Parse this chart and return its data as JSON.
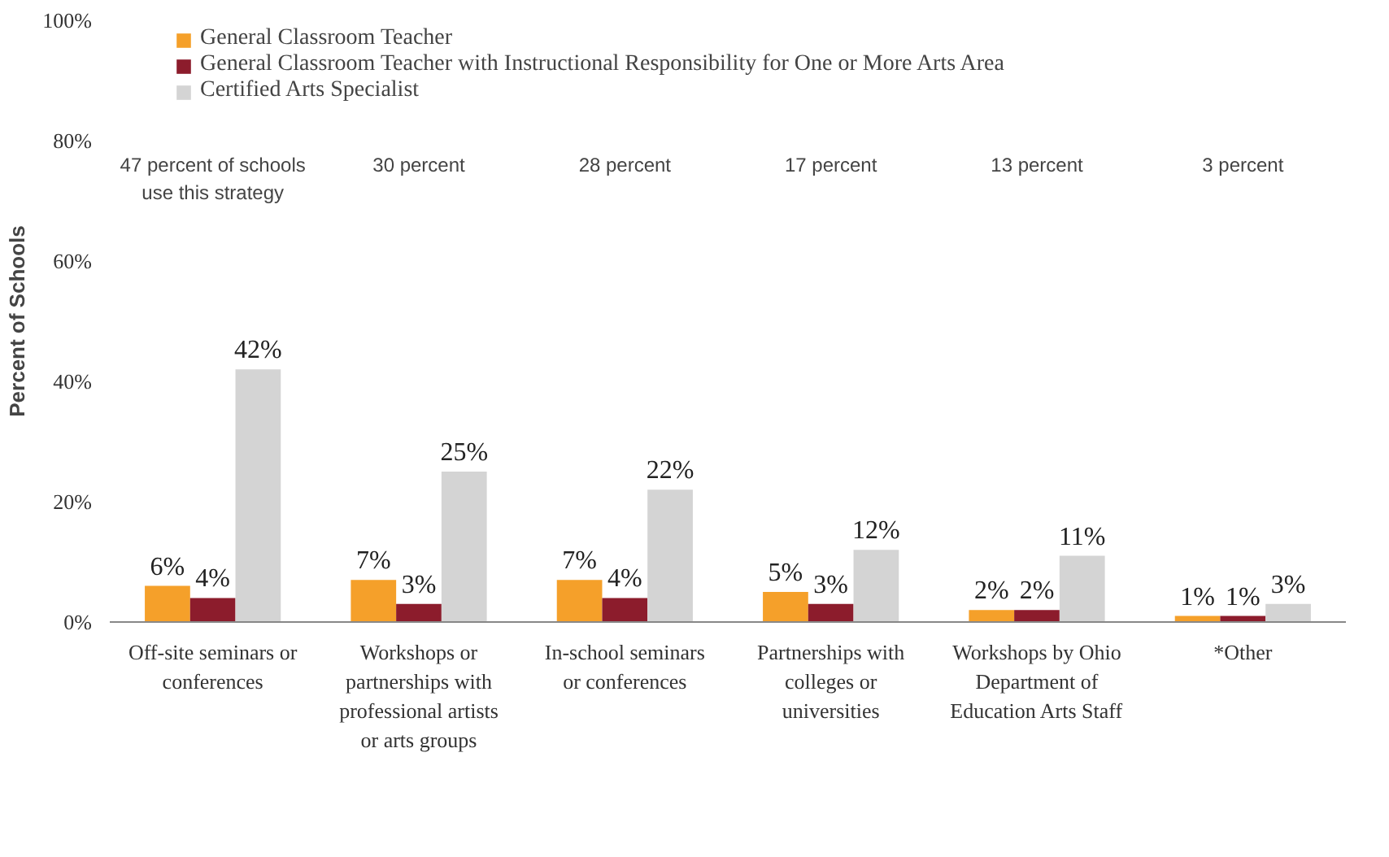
{
  "chart_data": {
    "type": "bar",
    "ylabel": "Percent of Schools",
    "categories": [
      "Off-site seminars or conferences",
      "Workshops or partnerships with professional artists or arts groups",
      "In-school seminars or conferences",
      "Partnerships with colleges or universities",
      "Workshops by Ohio Department of Education Arts Staff",
      "*Other"
    ],
    "series": [
      {
        "name": "General Classroom Teacher",
        "color": "#f5a02a",
        "values": [
          6,
          7,
          7,
          5,
          2,
          1
        ],
        "value_labels": [
          "6%",
          "7%",
          "7%",
          "5%",
          "2%",
          "1%"
        ]
      },
      {
        "name": "General Classroom Teacher with Instructional Responsibility for One or More Arts Area",
        "color": "#8c1c2c",
        "values": [
          4,
          3,
          4,
          3,
          2,
          1
        ],
        "value_labels": [
          "4%",
          "3%",
          "4%",
          "3%",
          "2%",
          "1%"
        ]
      },
      {
        "name": "Certified Arts Specialist",
        "color": "#d4d4d4",
        "values": [
          42,
          25,
          22,
          12,
          11,
          3
        ],
        "value_labels": [
          "42%",
          "25%",
          "22%",
          "12%",
          "11%",
          "3%"
        ]
      }
    ],
    "ylim": [
      0,
      100
    ],
    "yticks": [
      {
        "value": 0,
        "label": "0%"
      },
      {
        "value": 20,
        "label": "20%"
      },
      {
        "value": 40,
        "label": "40%"
      },
      {
        "value": 60,
        "label": "60%"
      },
      {
        "value": 80,
        "label": "80%"
      },
      {
        "value": 100,
        "label": "100%"
      }
    ],
    "annotations": [
      "47 percent of schools use this strategy",
      "30 percent",
      "28 percent",
      "17 percent",
      "13 percent",
      "3 percent"
    ],
    "legend": "top left"
  }
}
